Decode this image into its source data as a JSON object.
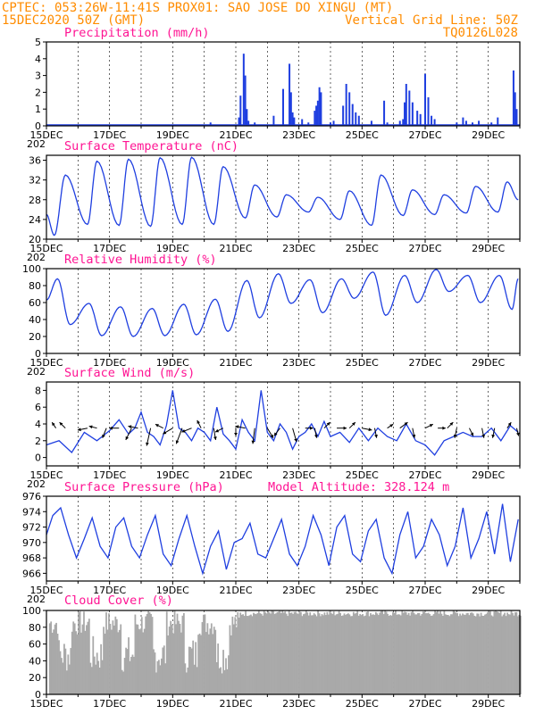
{
  "header": {
    "line1": "CPTEC:  053:26W-11:41S  PROX01: SAO JOSE DO XINGU (MT)",
    "line2_left": "15DEC2020 50Z (GMT)",
    "line2_right": "Vertical Grid Line: 50Z",
    "line3_right": "TQ0126L028"
  },
  "colors": {
    "header": "#ff8c00",
    "titles": "#ff1493",
    "series": "#1f3fe0",
    "cloud": "#a9a9a9"
  },
  "chart_data": [
    {
      "type": "bar",
      "title": "Precipitation (mm/h)",
      "ylim": [
        0,
        5
      ],
      "yticks": [
        0,
        1,
        2,
        3,
        4,
        5
      ],
      "x_start_day": 15,
      "x": [
        20.2,
        21.1,
        21.15,
        21.25,
        21.3,
        21.35,
        21.4,
        21.6,
        22.2,
        22.5,
        22.7,
        22.75,
        22.8,
        22.85,
        23.1,
        23.3,
        23.5,
        23.55,
        23.6,
        23.65,
        23.7,
        24.0,
        24.1,
        24.4,
        24.5,
        24.6,
        24.7,
        24.8,
        24.9,
        25.3,
        25.7,
        25.8,
        26.2,
        26.3,
        26.35,
        26.4,
        26.5,
        26.6,
        26.75,
        26.85,
        27.0,
        27.1,
        27.2,
        27.3,
        28.0,
        28.2,
        28.3,
        28.5,
        28.7,
        29.1,
        29.3,
        29.8,
        29.85,
        29.9
      ],
      "values": [
        0.2,
        0.5,
        1.8,
        4.3,
        3.0,
        1.0,
        0.3,
        0.2,
        0.6,
        2.2,
        3.7,
        2.0,
        0.8,
        0.5,
        0.4,
        0.2,
        0.9,
        1.2,
        1.5,
        2.3,
        2.0,
        0.2,
        0.3,
        1.2,
        2.5,
        2.0,
        1.3,
        0.8,
        0.6,
        0.3,
        1.5,
        0.2,
        0.3,
        0.4,
        1.4,
        2.5,
        2.1,
        1.4,
        0.9,
        0.7,
        3.1,
        1.7,
        0.6,
        0.4,
        0.2,
        0.5,
        0.3,
        0.2,
        0.3,
        0.2,
        0.5,
        3.3,
        2.0,
        1.0
      ]
    },
    {
      "type": "line",
      "title": "Surface Temperature (nC)",
      "ylim": [
        20,
        37
      ],
      "yticks": [
        20,
        24,
        28,
        32,
        36
      ],
      "x_start_day": 15,
      "maxima": [
        {
          "x": 15.6,
          "y": 33.0
        },
        {
          "x": 16.6,
          "y": 35.8
        },
        {
          "x": 17.6,
          "y": 36.2
        },
        {
          "x": 18.6,
          "y": 36.5
        },
        {
          "x": 19.6,
          "y": 36.6
        },
        {
          "x": 20.6,
          "y": 34.7
        },
        {
          "x": 21.6,
          "y": 31.0
        },
        {
          "x": 22.6,
          "y": 29.0
        },
        {
          "x": 23.6,
          "y": 28.5
        },
        {
          "x": 24.6,
          "y": 29.8
        },
        {
          "x": 25.6,
          "y": 33.0
        },
        {
          "x": 26.6,
          "y": 30.0
        },
        {
          "x": 27.6,
          "y": 29.0
        },
        {
          "x": 28.6,
          "y": 30.7
        },
        {
          "x": 29.6,
          "y": 31.6
        }
      ],
      "minima": [
        {
          "x": 15.0,
          "y": 25.0
        },
        {
          "x": 15.25,
          "y": 20.8
        },
        {
          "x": 16.3,
          "y": 23.0
        },
        {
          "x": 17.3,
          "y": 22.8
        },
        {
          "x": 18.3,
          "y": 22.6
        },
        {
          "x": 19.3,
          "y": 23.0
        },
        {
          "x": 20.3,
          "y": 23.0
        },
        {
          "x": 21.3,
          "y": 24.3
        },
        {
          "x": 22.3,
          "y": 24.5
        },
        {
          "x": 23.3,
          "y": 25.5
        },
        {
          "x": 24.3,
          "y": 24.0
        },
        {
          "x": 25.3,
          "y": 22.8
        },
        {
          "x": 26.3,
          "y": 24.8
        },
        {
          "x": 27.3,
          "y": 25.0
        },
        {
          "x": 28.3,
          "y": 25.3
        },
        {
          "x": 29.3,
          "y": 25.5
        },
        {
          "x": 29.95,
          "y": 28.0
        }
      ]
    },
    {
      "type": "line",
      "title": "Relative Humidity (%)",
      "ylim": [
        0,
        100
      ],
      "yticks": [
        0,
        20,
        40,
        60,
        80,
        100
      ],
      "x_start_day": 15,
      "maxima": [
        {
          "x": 15.0,
          "y": 63
        },
        {
          "x": 15.35,
          "y": 88
        },
        {
          "x": 16.35,
          "y": 59
        },
        {
          "x": 17.35,
          "y": 55
        },
        {
          "x": 18.35,
          "y": 53
        },
        {
          "x": 19.35,
          "y": 58
        },
        {
          "x": 20.35,
          "y": 64
        },
        {
          "x": 21.35,
          "y": 86
        },
        {
          "x": 22.35,
          "y": 94
        },
        {
          "x": 23.35,
          "y": 87
        },
        {
          "x": 24.35,
          "y": 88
        },
        {
          "x": 25.35,
          "y": 96
        },
        {
          "x": 26.35,
          "y": 92
        },
        {
          "x": 27.35,
          "y": 99
        },
        {
          "x": 28.35,
          "y": 92
        },
        {
          "x": 29.35,
          "y": 92
        },
        {
          "x": 29.95,
          "y": 88
        }
      ],
      "minima": [
        {
          "x": 15.75,
          "y": 34
        },
        {
          "x": 16.75,
          "y": 21
        },
        {
          "x": 17.75,
          "y": 20
        },
        {
          "x": 18.75,
          "y": 21
        },
        {
          "x": 19.75,
          "y": 22
        },
        {
          "x": 20.75,
          "y": 26
        },
        {
          "x": 21.75,
          "y": 42
        },
        {
          "x": 22.75,
          "y": 59
        },
        {
          "x": 23.75,
          "y": 48
        },
        {
          "x": 24.75,
          "y": 65
        },
        {
          "x": 25.75,
          "y": 45
        },
        {
          "x": 26.75,
          "y": 60
        },
        {
          "x": 27.75,
          "y": 73
        },
        {
          "x": 28.75,
          "y": 60
        },
        {
          "x": 29.75,
          "y": 52
        }
      ]
    },
    {
      "type": "line",
      "title": "Surface Wind (m/s)",
      "ylim": [
        -1,
        9
      ],
      "yticks": [
        0,
        2,
        4,
        6,
        8
      ],
      "x_start_day": 15,
      "x": [
        15.0,
        15.4,
        15.8,
        16.2,
        16.6,
        17.0,
        17.3,
        17.6,
        17.8,
        18.0,
        18.2,
        18.4,
        18.6,
        18.8,
        19.0,
        19.2,
        19.4,
        19.6,
        19.8,
        20.0,
        20.2,
        20.4,
        20.6,
        20.8,
        21.0,
        21.2,
        21.4,
        21.6,
        21.8,
        22.0,
        22.2,
        22.4,
        22.6,
        22.8,
        23.0,
        23.2,
        23.4,
        23.6,
        23.8,
        24.0,
        24.3,
        24.6,
        24.9,
        25.2,
        25.5,
        25.8,
        26.1,
        26.4,
        26.7,
        27.0,
        27.3,
        27.6,
        27.9,
        28.2,
        28.5,
        28.8,
        29.1,
        29.4,
        29.7,
        29.95
      ],
      "values": [
        1.5,
        2.0,
        0.6,
        3.0,
        2.0,
        3.2,
        4.5,
        2.8,
        3.5,
        5.4,
        3.0,
        2.5,
        1.5,
        3.8,
        8.0,
        3.5,
        3.0,
        2.0,
        3.5,
        3.0,
        2.0,
        6.0,
        2.8,
        2.0,
        1.0,
        4.5,
        3.0,
        2.0,
        8.0,
        3.0,
        2.0,
        4.0,
        3.0,
        1.0,
        2.5,
        3.0,
        4.0,
        2.5,
        4.3,
        2.5,
        3.0,
        1.8,
        3.5,
        2.0,
        3.5,
        2.5,
        2.0,
        4.0,
        2.0,
        1.5,
        0.3,
        2.0,
        2.5,
        3.0,
        2.5,
        2.5,
        3.5,
        2.0,
        3.8,
        3.0
      ],
      "vectors": [
        {
          "x": 15.3,
          "u": -0.2,
          "v": 0.3
        },
        {
          "x": 15.6,
          "u": -0.3,
          "v": 0.3
        },
        {
          "x": 16.3,
          "u": -0.5,
          "v": -0.1
        },
        {
          "x": 16.6,
          "u": -0.4,
          "v": 0.1
        },
        {
          "x": 16.9,
          "u": -0.2,
          "v": -0.5
        },
        {
          "x": 17.3,
          "u": -0.5,
          "v": 0.0
        },
        {
          "x": 17.7,
          "u": -0.3,
          "v": -0.6
        },
        {
          "x": 17.9,
          "u": -0.5,
          "v": 0.1
        },
        {
          "x": 18.3,
          "u": -0.2,
          "v": -0.9
        },
        {
          "x": 18.7,
          "u": -0.4,
          "v": 0.2
        },
        {
          "x": 19.0,
          "u": -0.5,
          "v": -0.3
        },
        {
          "x": 19.3,
          "u": -0.3,
          "v": -0.8
        },
        {
          "x": 19.6,
          "u": -0.5,
          "v": -0.2
        },
        {
          "x": 19.9,
          "u": -0.2,
          "v": 0.4
        },
        {
          "x": 20.3,
          "u": 0.1,
          "v": -0.6
        },
        {
          "x": 20.6,
          "u": -0.4,
          "v": -0.2
        },
        {
          "x": 21.0,
          "u": 0.0,
          "v": -0.4
        },
        {
          "x": 21.3,
          "u": -0.5,
          "v": 0.1
        },
        {
          "x": 21.6,
          "u": -0.1,
          "v": -0.8
        },
        {
          "x": 22.0,
          "u": 0.3,
          "v": -0.5
        },
        {
          "x": 22.4,
          "u": -0.3,
          "v": -0.4
        },
        {
          "x": 22.8,
          "u": 0.2,
          "v": -0.7
        },
        {
          "x": 23.2,
          "u": 0.4,
          "v": 0.0
        },
        {
          "x": 23.5,
          "u": 0.1,
          "v": -0.5
        },
        {
          "x": 23.8,
          "u": 0.3,
          "v": 0.3
        },
        {
          "x": 24.2,
          "u": 0.5,
          "v": 0.0
        },
        {
          "x": 24.6,
          "u": 0.3,
          "v": 0.3
        },
        {
          "x": 25.0,
          "u": 0.5,
          "v": -0.1
        },
        {
          "x": 25.4,
          "u": 0.1,
          "v": -0.5
        },
        {
          "x": 25.8,
          "u": 0.3,
          "v": 0.2
        },
        {
          "x": 26.2,
          "u": 0.4,
          "v": 0.3
        },
        {
          "x": 26.6,
          "u": 0.1,
          "v": -0.5
        },
        {
          "x": 27.0,
          "u": 0.4,
          "v": 0.2
        },
        {
          "x": 27.4,
          "u": 0.4,
          "v": 0.0
        },
        {
          "x": 27.7,
          "u": 0.3,
          "v": 0.3
        },
        {
          "x": 28.0,
          "u": -0.1,
          "v": -0.5
        },
        {
          "x": 28.4,
          "u": 0.2,
          "v": -0.4
        },
        {
          "x": 28.8,
          "u": 0.1,
          "v": -0.5
        },
        {
          "x": 29.2,
          "u": -0.1,
          "v": -0.5
        },
        {
          "x": 29.6,
          "u": 0.2,
          "v": 0.3
        },
        {
          "x": 29.9,
          "u": 0.1,
          "v": -0.4
        }
      ]
    },
    {
      "type": "line",
      "title": "Surface Pressure (hPa)",
      "ylim": [
        965,
        976
      ],
      "yticks": [
        966,
        968,
        970,
        972,
        974,
        976
      ],
      "x_start_day": 15,
      "x": [
        15.0,
        15.2,
        15.45,
        15.7,
        15.95,
        16.2,
        16.45,
        16.7,
        16.95,
        17.2,
        17.45,
        17.7,
        17.95,
        18.2,
        18.45,
        18.7,
        18.95,
        19.2,
        19.45,
        19.7,
        19.95,
        20.2,
        20.45,
        20.7,
        20.95,
        21.2,
        21.45,
        21.7,
        21.95,
        22.2,
        22.45,
        22.7,
        22.95,
        23.2,
        23.45,
        23.7,
        23.95,
        24.2,
        24.45,
        24.7,
        24.95,
        25.2,
        25.45,
        25.7,
        25.95,
        26.2,
        26.45,
        26.7,
        26.95,
        27.2,
        27.45,
        27.7,
        27.95,
        28.2,
        28.45,
        28.7,
        28.95,
        29.2,
        29.45,
        29.7,
        29.95
      ],
      "values": [
        971.0,
        973.5,
        974.5,
        971.0,
        968.0,
        970.5,
        973.2,
        969.5,
        968.0,
        972.0,
        973.2,
        969.5,
        968.0,
        971.0,
        973.5,
        968.5,
        967.0,
        970.5,
        973.5,
        969.5,
        966.0,
        969.5,
        971.5,
        966.5,
        970.0,
        970.5,
        972.5,
        968.5,
        968.0,
        970.5,
        973.0,
        968.5,
        967.0,
        969.5,
        973.5,
        971.0,
        967.0,
        972.0,
        973.5,
        968.5,
        967.5,
        971.5,
        973.0,
        968.0,
        966.0,
        971.0,
        974.0,
        968.0,
        969.5,
        973.0,
        971.0,
        967.0,
        969.5,
        974.5,
        968.0,
        970.5,
        974.0,
        968.5,
        975.0,
        967.5,
        973.0
      ]
    },
    {
      "type": "bar",
      "title": "Cloud Cover (%)",
      "ylim": [
        0,
        100
      ],
      "yticks": [
        0,
        20,
        40,
        60,
        80,
        100
      ],
      "x_start_day": 15
    }
  ],
  "x_axis": {
    "ticks": [
      15,
      17,
      19,
      21,
      23,
      25,
      27,
      29
    ],
    "labels": [
      "15DEC",
      "17DEC",
      "19DEC",
      "21DEC",
      "23DEC",
      "25DEC",
      "27DEC",
      "29DEC"
    ],
    "year_fragment": "202",
    "minor_ticks": [
      16,
      18,
      20,
      22,
      24,
      26,
      28,
      30
    ]
  },
  "extra": {
    "model_altitude": "Model Altitude: 328.124 m"
  }
}
